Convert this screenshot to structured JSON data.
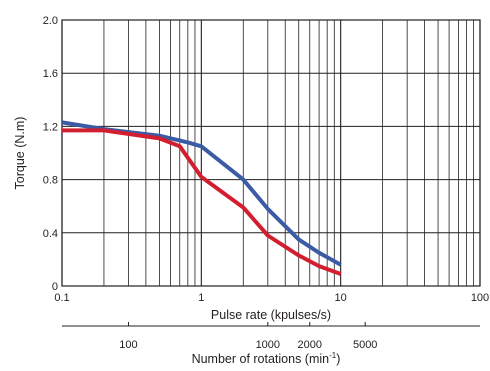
{
  "chart_data": {
    "type": "line",
    "title": "",
    "xlabel": "Pulse rate (kpulses/s)",
    "ylabel": "Torque (N.m)",
    "x_scale": "log",
    "xlim": [
      0.1,
      100
    ],
    "ylim": [
      0,
      2.0
    ],
    "grid": true,
    "x_ticks": [
      {
        "value": 0.1,
        "label": "0.1"
      },
      {
        "value": 1,
        "label": "1"
      },
      {
        "value": 10,
        "label": "10"
      },
      {
        "value": 100,
        "label": "100"
      }
    ],
    "y_ticks": [
      {
        "value": 0,
        "label": "0"
      },
      {
        "value": 0.4,
        "label": "0.4"
      },
      {
        "value": 0.8,
        "label": "0.8"
      },
      {
        "value": 1.2,
        "label": "1.2"
      },
      {
        "value": 1.6,
        "label": "1.6"
      },
      {
        "value": 2.0,
        "label": "2.0"
      }
    ],
    "secondary_axis": {
      "label_main": "Number of rotations (min",
      "label_sup": "-1",
      "label_end": ")",
      "ticks": [
        {
          "at_pulse_rate": 0.3,
          "label": "100"
        },
        {
          "at_pulse_rate": 3.0,
          "label": "1000"
        },
        {
          "at_pulse_rate": 6.0,
          "label": "2000"
        },
        {
          "at_pulse_rate": 15.0,
          "label": "5000"
        }
      ]
    },
    "series": [
      {
        "color": "#3b5ba5",
        "x": [
          0.1,
          0.2,
          0.5,
          0.8,
          1.0,
          2.0,
          3.0,
          5.0,
          7.0,
          10.0
        ],
        "y": [
          1.23,
          1.18,
          1.13,
          1.08,
          1.05,
          0.8,
          0.58,
          0.35,
          0.25,
          0.16
        ]
      },
      {
        "color": "#d21f2f",
        "x": [
          0.1,
          0.2,
          0.5,
          0.7,
          1.0,
          2.0,
          3.0,
          5.0,
          7.0,
          10.0
        ],
        "y": [
          1.17,
          1.17,
          1.11,
          1.05,
          0.82,
          0.59,
          0.38,
          0.23,
          0.15,
          0.09
        ]
      }
    ]
  }
}
